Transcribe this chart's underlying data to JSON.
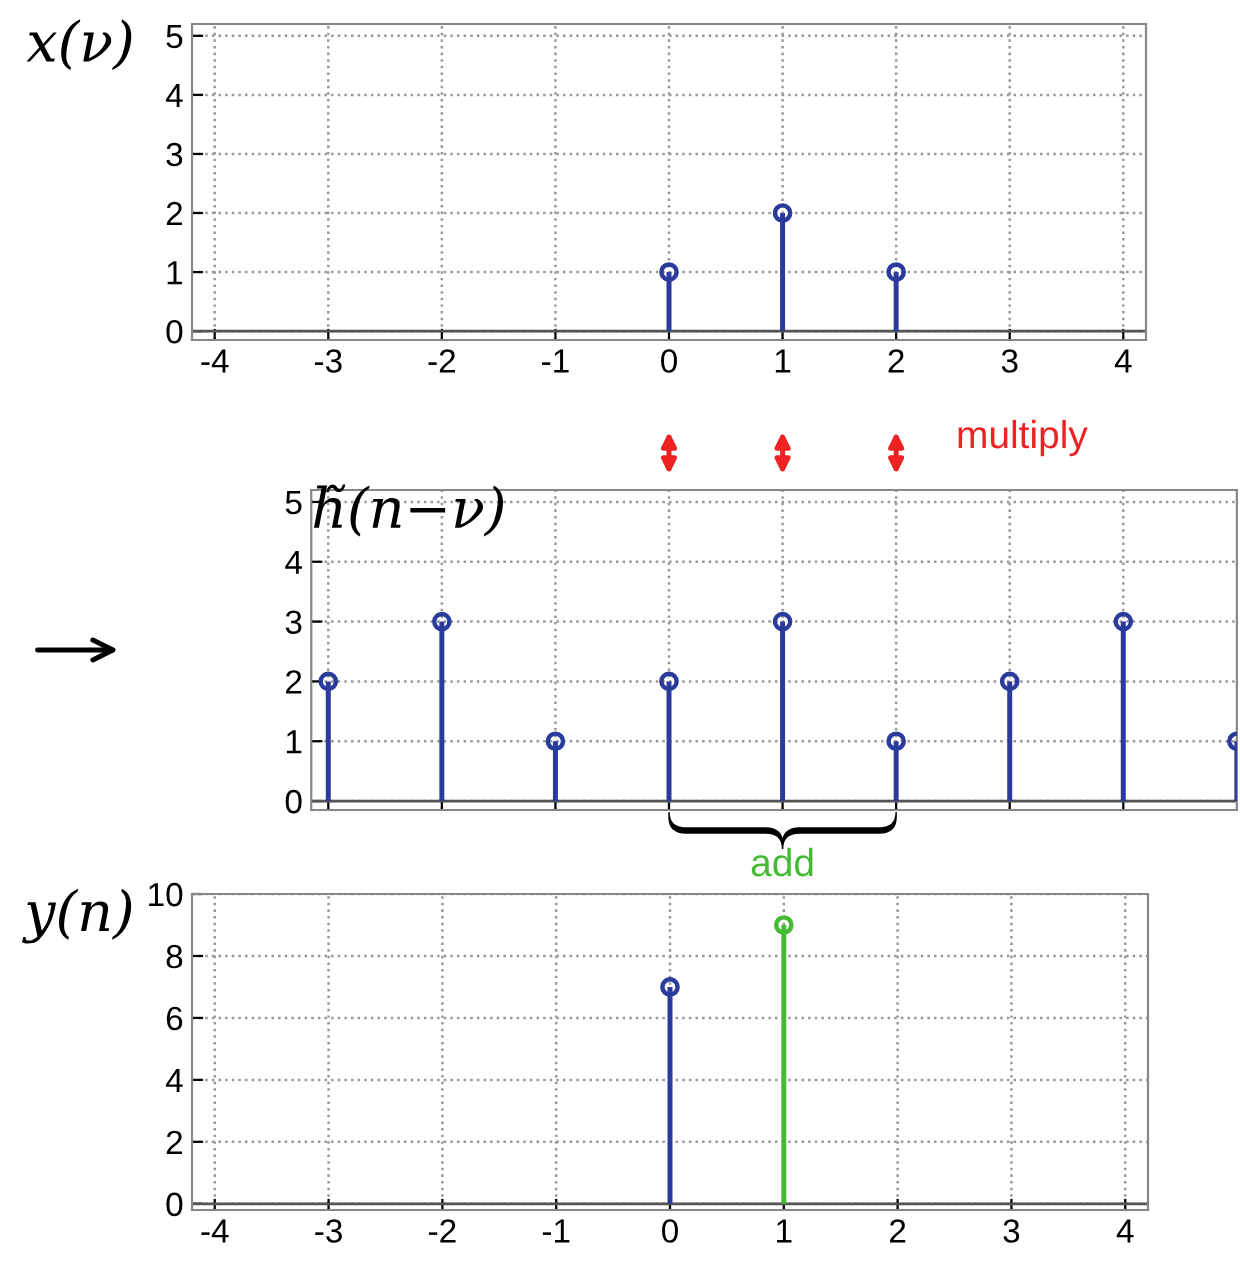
{
  "chart_data": [
    {
      "type": "lollipop",
      "ylabel": "x(ν)",
      "x": [
        0,
        1,
        2
      ],
      "values": [
        1,
        2,
        1
      ],
      "color": "#2a3b9c",
      "marker": "circle",
      "xlim": [
        -4.2,
        4.2
      ],
      "ylim": [
        -0.15,
        5.2
      ],
      "xticks": [
        -4,
        -3,
        -2,
        -1,
        0,
        1,
        2,
        3,
        4
      ],
      "yticks": [
        0,
        1,
        2,
        3,
        4,
        5
      ],
      "grid": true,
      "annotations": [
        "multiply"
      ]
    },
    {
      "type": "lollipop",
      "ylabel": "h̃(n−ν)",
      "x": [
        -3,
        -2,
        -1,
        0,
        1,
        2,
        3,
        4,
        5
      ],
      "values": [
        2,
        3,
        1,
        2,
        3,
        1,
        2,
        3,
        1
      ],
      "color": "#2a3b9c",
      "marker": "circle",
      "xlim": [
        -3.15,
        5.0
      ],
      "ylim": [
        -0.15,
        5.2
      ],
      "xticks": [
        -3,
        -2,
        -1,
        0,
        1,
        2,
        3,
        4
      ],
      "yticks": [
        0,
        1,
        2,
        3,
        4,
        5
      ],
      "grid": true,
      "tick_labels": "y"
    },
    {
      "type": "lollipop",
      "ylabel": "y(n)",
      "x": [
        0,
        1
      ],
      "values": [
        7,
        9
      ],
      "colors": [
        "#2a3b9c",
        "#44bb33"
      ],
      "marker": "circle",
      "xlim": [
        -4.2,
        4.2
      ],
      "ylim": [
        -0.2,
        10
      ],
      "xticks": [
        -4,
        -3,
        -2,
        -1,
        0,
        1,
        2,
        3,
        4
      ],
      "yticks": [
        0,
        2,
        4,
        6,
        8,
        10
      ],
      "grid": true,
      "annotations": [
        "add"
      ]
    }
  ]
}
